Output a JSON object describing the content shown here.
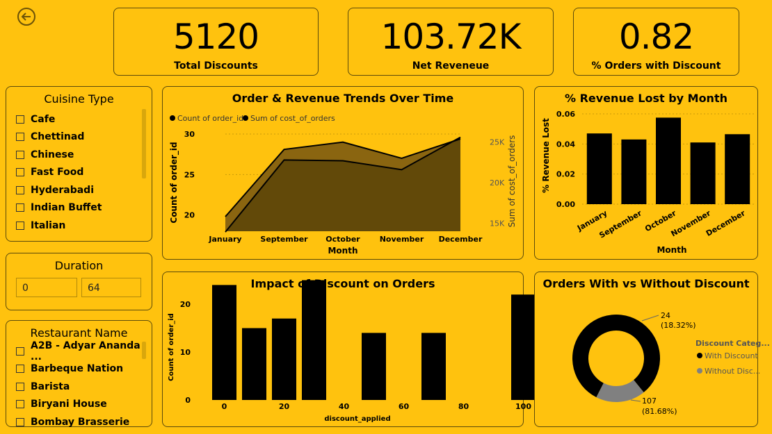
{
  "kpis": {
    "discounts": {
      "value": "5120",
      "label": "Total Discounts"
    },
    "revenue": {
      "value": "103.72K",
      "label": "Net Reveneue"
    },
    "pct": {
      "value": "0.82",
      "label": "% Orders with Discount"
    }
  },
  "cuisine_slicer": {
    "title": "Cuisine Type",
    "items": [
      "Cafe",
      "Chettinad",
      "Chinese",
      "Fast Food",
      "Hyderabadi",
      "Indian Buffet",
      "Italian"
    ]
  },
  "duration_slicer": {
    "title": "Duration",
    "min": "0",
    "max": "64"
  },
  "restaurant_slicer": {
    "title": "Restaurant Name",
    "items": [
      "A2B - Adyar Ananda ...",
      "Barbeque Nation",
      "Barista",
      "Biryani House",
      "Bombay Brasserie"
    ]
  },
  "trend_chart": {
    "title": "Order & Revenue Trends Over Time",
    "legend": [
      "Count of order_id",
      "Sum of cost_of_orders"
    ]
  },
  "revenue_lost_chart": {
    "title": "% Revenue Lost by Month"
  },
  "discount_chart": {
    "title": "Impact of Discount on Orders"
  },
  "donut_chart": {
    "title": "Orders With vs Without Discount",
    "legend_title": "Discount Categ...",
    "legend_items": [
      "With Discount",
      "Without Disc..."
    ],
    "label_small_count": "24",
    "label_small_pct": "(18.32%)",
    "label_big_count": "107",
    "label_big_pct": "(81.68%)"
  },
  "colors": {
    "background": "#FFC20E",
    "bar": "#000000",
    "area_revenue": "#8a6510",
    "area_orders": "#5a4408",
    "donut_secondary": "#808080"
  },
  "chart_data": [
    {
      "type": "area",
      "title": "Order & Revenue Trends Over Time",
      "xlabel": "Month",
      "ylabel": "Count of order_id",
      "y2label": "Sum of cost_of_orders",
      "categories": [
        "January",
        "September",
        "October",
        "November",
        "December"
      ],
      "ylim": [
        18,
        30
      ],
      "yticks": [
        20,
        25,
        30
      ],
      "y2lim": [
        14000,
        26000
      ],
      "y2ticks": [
        15000,
        20000,
        25000
      ],
      "y2tick_labels": [
        "15K",
        "20K",
        "25K"
      ],
      "series": [
        {
          "name": "Count of order_id",
          "axis": "left",
          "values": [
            19.8,
            28.1,
            29.0,
            27.0,
            29.4
          ]
        },
        {
          "name": "Sum of cost_of_orders",
          "axis": "right",
          "values": [
            13900,
            22800,
            22700,
            21600,
            25600
          ]
        }
      ]
    },
    {
      "type": "bar",
      "title": "% Revenue Lost by Month",
      "xlabel": "Month",
      "ylabel": "% Revenue Lost",
      "categories": [
        "January",
        "September",
        "October",
        "November",
        "December"
      ],
      "values": [
        0.047,
        0.043,
        0.0575,
        0.041,
        0.0465
      ],
      "ylim": [
        0,
        0.06
      ],
      "yticks": [
        0,
        0.02,
        0.04,
        0.06
      ],
      "ytick_labels": [
        "0.00",
        "0.02",
        "0.04",
        "0.06"
      ]
    },
    {
      "type": "bar",
      "title": "Impact of Discount on Orders",
      "xlabel": "discount_applied",
      "ylabel": "Count of order_id",
      "x": [
        0,
        10,
        20,
        30,
        50,
        70,
        100
      ],
      "values": [
        24,
        15,
        17,
        25,
        14,
        14,
        22
      ],
      "xlim": [
        -5,
        105
      ],
      "xticks": [
        0,
        20,
        40,
        60,
        80,
        100
      ],
      "ylim": [
        0,
        26
      ],
      "yticks": [
        0,
        10,
        20
      ]
    },
    {
      "type": "pie",
      "title": "Orders With vs Without Discount",
      "categories": [
        "With Discount",
        "Without Discount"
      ],
      "values": [
        107,
        24
      ],
      "percents": [
        81.68,
        18.32
      ]
    }
  ]
}
